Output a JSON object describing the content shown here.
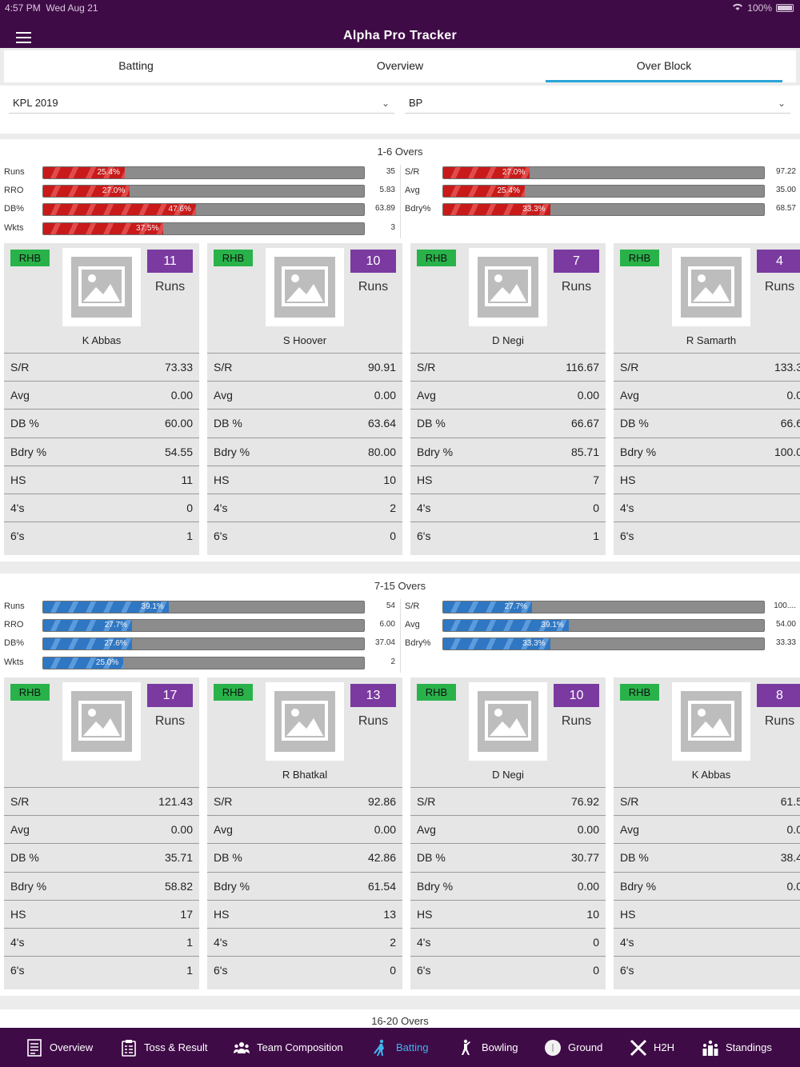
{
  "status_bar": {
    "time": "4:57 PM",
    "date": "Wed Aug 21",
    "battery": "100%"
  },
  "app_title": "Alpha Pro Tracker",
  "tabs": [
    {
      "label": "Batting",
      "active": false
    },
    {
      "label": "Overview",
      "active": false
    },
    {
      "label": "Over Block",
      "active": true
    }
  ],
  "filters": {
    "tournament": "KPL 2019",
    "team": "BP"
  },
  "colors": {
    "header": "#3f0b47",
    "tab_indicator": "#2aa5d9",
    "hand_badge": "#29b24a",
    "runs_badge": "#7a3aa0",
    "bar_red": "#c91a1a",
    "bar_blue": "#2f77c3",
    "nav_active": "#3fb4ec"
  },
  "sections": [
    {
      "title": "1-6 Overs",
      "color": "red",
      "left_metrics": [
        {
          "label": "Runs",
          "pct": 25.4,
          "pct_text": "25.4%",
          "value": "35"
        },
        {
          "label": "RRO",
          "pct": 27.0,
          "pct_text": "27.0%",
          "value": "5.83"
        },
        {
          "label": "DB%",
          "pct": 47.6,
          "pct_text": "47.6%",
          "value": "63.89"
        },
        {
          "label": "Wkts",
          "pct": 37.5,
          "pct_text": "37.5%",
          "value": "3"
        }
      ],
      "right_metrics": [
        {
          "label": "S/R",
          "pct": 27.0,
          "pct_text": "27.0%",
          "value": "97.22"
        },
        {
          "label": "Avg",
          "pct": 25.4,
          "pct_text": "25.4%",
          "value": "35.00"
        },
        {
          "label": "Bdry%",
          "pct": 33.3,
          "pct_text": "33.3%",
          "value": "68.57"
        }
      ],
      "players": [
        {
          "hand": "RHB",
          "runs": "11",
          "runs_label": "Runs",
          "name": "K Abbas",
          "stats": [
            [
              "S/R",
              "73.33"
            ],
            [
              "Avg",
              "0.00"
            ],
            [
              "DB %",
              "60.00"
            ],
            [
              "Bdry %",
              "54.55"
            ],
            [
              "HS",
              "11"
            ],
            [
              "4's",
              "0"
            ],
            [
              "6's",
              "1"
            ]
          ]
        },
        {
          "hand": "RHB",
          "runs": "10",
          "runs_label": "Runs",
          "name": "S Hoover",
          "stats": [
            [
              "S/R",
              "90.91"
            ],
            [
              "Avg",
              "0.00"
            ],
            [
              "DB %",
              "63.64"
            ],
            [
              "Bdry %",
              "80.00"
            ],
            [
              "HS",
              "10"
            ],
            [
              "4's",
              "2"
            ],
            [
              "6's",
              "0"
            ]
          ]
        },
        {
          "hand": "RHB",
          "runs": "7",
          "runs_label": "Runs",
          "name": "D Negi",
          "stats": [
            [
              "S/R",
              "116.67"
            ],
            [
              "Avg",
              "0.00"
            ],
            [
              "DB %",
              "66.67"
            ],
            [
              "Bdry %",
              "85.71"
            ],
            [
              "HS",
              "7"
            ],
            [
              "4's",
              "0"
            ],
            [
              "6's",
              "1"
            ]
          ]
        },
        {
          "hand": "RHB",
          "runs": "4",
          "runs_label": "Runs",
          "name": "R Samarth",
          "stats": [
            [
              "S/R",
              "133.3"
            ],
            [
              "Avg",
              "0.0"
            ],
            [
              "DB %",
              "66.6"
            ],
            [
              "Bdry %",
              "100.0"
            ],
            [
              "HS",
              ""
            ],
            [
              "4's",
              ""
            ],
            [
              "6's",
              ""
            ]
          ]
        }
      ]
    },
    {
      "title": "7-15 Overs",
      "color": "blue",
      "left_metrics": [
        {
          "label": "Runs",
          "pct": 39.1,
          "pct_text": "39.1%",
          "value": "54"
        },
        {
          "label": "RRO",
          "pct": 27.7,
          "pct_text": "27.7%",
          "value": "6.00"
        },
        {
          "label": "DB%",
          "pct": 27.6,
          "pct_text": "27.6%",
          "value": "37.04"
        },
        {
          "label": "Wkts",
          "pct": 25.0,
          "pct_text": "25.0%",
          "value": "2"
        }
      ],
      "right_metrics": [
        {
          "label": "S/R",
          "pct": 27.7,
          "pct_text": "27.7%",
          "value": "100...."
        },
        {
          "label": "Avg",
          "pct": 39.1,
          "pct_text": "39.1%",
          "value": "54.00"
        },
        {
          "label": "Bdry%",
          "pct": 33.3,
          "pct_text": "33.3%",
          "value": "33.33"
        }
      ],
      "players": [
        {
          "hand": "RHB",
          "runs": "17",
          "runs_label": "Runs",
          "name": "",
          "stats": [
            [
              "S/R",
              "121.43"
            ],
            [
              "Avg",
              "0.00"
            ],
            [
              "DB %",
              "35.71"
            ],
            [
              "Bdry %",
              "58.82"
            ],
            [
              "HS",
              "17"
            ],
            [
              "4's",
              "1"
            ],
            [
              "6's",
              "1"
            ]
          ]
        },
        {
          "hand": "RHB",
          "runs": "13",
          "runs_label": "Runs",
          "name": "R Bhatkal",
          "stats": [
            [
              "S/R",
              "92.86"
            ],
            [
              "Avg",
              "0.00"
            ],
            [
              "DB %",
              "42.86"
            ],
            [
              "Bdry %",
              "61.54"
            ],
            [
              "HS",
              "13"
            ],
            [
              "4's",
              "2"
            ],
            [
              "6's",
              "0"
            ]
          ]
        },
        {
          "hand": "RHB",
          "runs": "10",
          "runs_label": "Runs",
          "name": "D Negi",
          "stats": [
            [
              "S/R",
              "76.92"
            ],
            [
              "Avg",
              "0.00"
            ],
            [
              "DB %",
              "30.77"
            ],
            [
              "Bdry %",
              "0.00"
            ],
            [
              "HS",
              "10"
            ],
            [
              "4's",
              "0"
            ],
            [
              "6's",
              "0"
            ]
          ]
        },
        {
          "hand": "RHB",
          "runs": "8",
          "runs_label": "Runs",
          "name": "K Abbas",
          "stats": [
            [
              "S/R",
              "61.5"
            ],
            [
              "Avg",
              "0.0"
            ],
            [
              "DB %",
              "38.4"
            ],
            [
              "Bdry %",
              "0.0"
            ],
            [
              "HS",
              ""
            ],
            [
              "4's",
              ""
            ],
            [
              "6's",
              ""
            ]
          ]
        }
      ]
    }
  ],
  "next_section_title": "16-20 Overs",
  "bottom_nav": [
    {
      "label": "Overview",
      "icon": "document-icon",
      "active": false
    },
    {
      "label": "Toss & Result",
      "icon": "clipboard-icon",
      "active": false
    },
    {
      "label": "Team Composition",
      "icon": "team-icon",
      "active": false
    },
    {
      "label": "Batting",
      "icon": "batsman-icon",
      "active": true
    },
    {
      "label": "Bowling",
      "icon": "bowler-icon",
      "active": false
    },
    {
      "label": "Ground",
      "icon": "ground-icon",
      "active": false
    },
    {
      "label": "H2H",
      "icon": "crossed-bats-icon",
      "active": false
    },
    {
      "label": "Standings",
      "icon": "standings-icon",
      "active": false
    }
  ]
}
